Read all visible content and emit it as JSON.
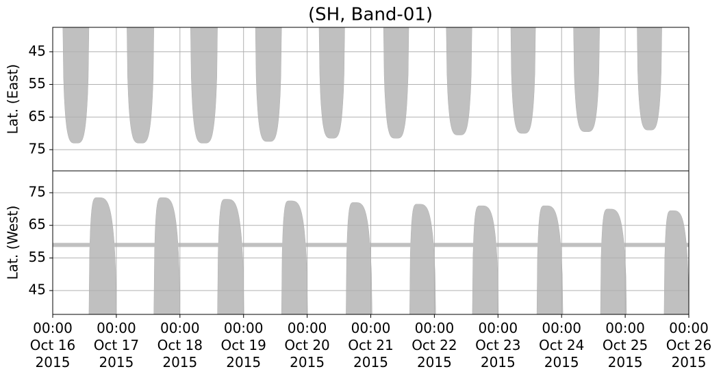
{
  "chart_data": [
    {
      "type": "coverage",
      "title": "(SH, Band-01)",
      "y_label": "Lat. (East)",
      "ylim": [
        81.5,
        37.5
      ],
      "yticks": [
        45,
        55,
        65,
        75
      ],
      "grid": true,
      "color": "#c0c0c0",
      "anchor": "top",
      "swaths": [
        {
          "start": "2015-10-16 03:50",
          "end": "2015-10-16 13:40",
          "lat": 73
        },
        {
          "start": "2015-10-17 04:00",
          "end": "2015-10-17 14:10",
          "lat": 73
        },
        {
          "start": "2015-10-18 04:00",
          "end": "2015-10-18 14:10",
          "lat": 73
        },
        {
          "start": "2015-10-19 04:30",
          "end": "2015-10-19 14:20",
          "lat": 72.5
        },
        {
          "start": "2015-10-20 04:30",
          "end": "2015-10-20 14:10",
          "lat": 71.5
        },
        {
          "start": "2015-10-21 04:50",
          "end": "2015-10-21 14:20",
          "lat": 71.5
        },
        {
          "start": "2015-10-22 04:30",
          "end": "2015-10-22 14:10",
          "lat": 70.5
        },
        {
          "start": "2015-10-23 04:50",
          "end": "2015-10-23 14:10",
          "lat": 70
        },
        {
          "start": "2015-10-24 04:30",
          "end": "2015-10-24 14:20",
          "lat": 69.5
        },
        {
          "start": "2015-10-25 04:30",
          "end": "2015-10-25 13:50",
          "lat": 69
        }
      ]
    },
    {
      "type": "coverage",
      "y_label": "Lat. (West)",
      "ylim": [
        37.7,
        81.7
      ],
      "yticks": [
        45,
        55,
        65,
        75
      ],
      "grid": true,
      "color": "#c0c0c0",
      "anchor": "bottom",
      "band_lat": 59,
      "xlim": [
        "2015-10-16 00:00",
        "2015-10-26 00:00"
      ],
      "xticks": [
        {
          "value": "2015-10-16 00:00",
          "label": "00:00\nOct 16\n2015"
        },
        {
          "value": "2015-10-17 00:00",
          "label": "00:00\nOct 17\n2015"
        },
        {
          "value": "2015-10-18 00:00",
          "label": "00:00\nOct 18\n2015"
        },
        {
          "value": "2015-10-19 00:00",
          "label": "00:00\nOct 19\n2015"
        },
        {
          "value": "2015-10-20 00:00",
          "label": "00:00\nOct 20\n2015"
        },
        {
          "value": "2015-10-21 00:00",
          "label": "00:00\nOct 21\n2015"
        },
        {
          "value": "2015-10-22 00:00",
          "label": "00:00\nOct 22\n2015"
        },
        {
          "value": "2015-10-23 00:00",
          "label": "00:00\nOct 23\n2015"
        },
        {
          "value": "2015-10-24 00:00",
          "label": "00:00\nOct 24\n2015"
        },
        {
          "value": "2015-10-25 00:00",
          "label": "00:00\nOct 25\n2015"
        },
        {
          "value": "2015-10-26 00:00",
          "label": "00:00\nOct 26\n2015"
        }
      ],
      "swaths": [
        {
          "start": "2015-10-16 13:40",
          "end": "2015-10-17 00:00",
          "lat": 73.5
        },
        {
          "start": "2015-10-17 14:10",
          "end": "2015-10-18 00:00",
          "lat": 73.5
        },
        {
          "start": "2015-10-18 14:10",
          "end": "2015-10-19 00:10",
          "lat": 73
        },
        {
          "start": "2015-10-19 14:20",
          "end": "2015-10-20 00:10",
          "lat": 72.5
        },
        {
          "start": "2015-10-20 14:40",
          "end": "2015-10-21 00:30",
          "lat": 72
        },
        {
          "start": "2015-10-21 14:40",
          "end": "2015-10-22 00:30",
          "lat": 71.5
        },
        {
          "start": "2015-10-22 14:20",
          "end": "2015-10-23 00:10",
          "lat": 71
        },
        {
          "start": "2015-10-23 14:40",
          "end": "2015-10-24 00:30",
          "lat": 71
        },
        {
          "start": "2015-10-24 14:40",
          "end": "2015-10-25 00:30",
          "lat": 70
        },
        {
          "start": "2015-10-25 14:40",
          "end": "2015-10-26 00:00",
          "lat": 69.5
        }
      ]
    }
  ]
}
